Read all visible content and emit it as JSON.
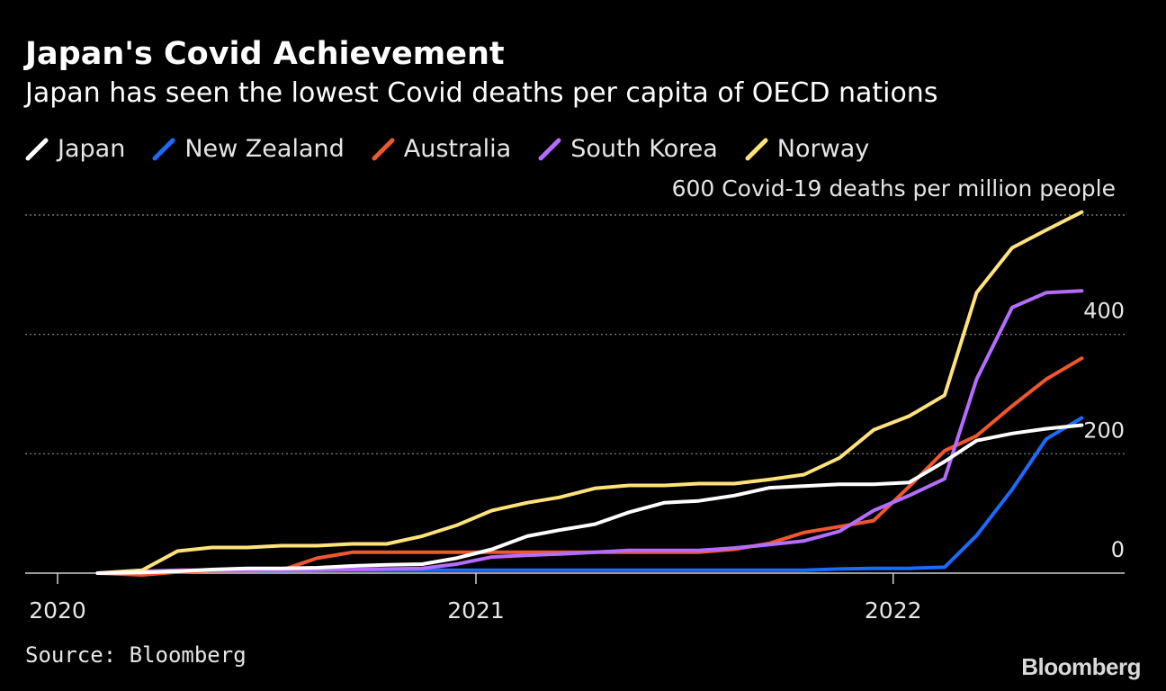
{
  "title": "Japan's Covid Achievement",
  "subtitle": "Japan has seen the lowest Covid deaths per capita of OECD nations",
  "source": "Source: Bloomberg",
  "brand": "Bloomberg",
  "colors": {
    "Japan": "#ffffff",
    "New Zealand": "#1a6bff",
    "Australia": "#f0572f",
    "South Korea": "#b56cff",
    "Norway": "#ffe37a"
  },
  "chart_data": {
    "type": "line",
    "y_axis_title": "600 Covid-19 deaths per million people",
    "ylim": [
      0,
      600
    ],
    "y_ticks": [
      {
        "value": 600,
        "label": ""
      },
      {
        "value": 400,
        "label": "400"
      },
      {
        "value": 200,
        "label": "200"
      },
      {
        "value": 0,
        "label": "0"
      }
    ],
    "x_range": [
      "2020-01-01",
      "2022-07-15"
    ],
    "x_ticks": [
      {
        "date": "2020-01-01",
        "label": "2020"
      },
      {
        "date": "2021-01-01",
        "label": "2021"
      },
      {
        "date": "2022-01-01",
        "label": "2022"
      }
    ],
    "grid": true,
    "legend_position": "top-left",
    "x": [
      "2020-02-05",
      "2020-03-15",
      "2020-04-15",
      "2020-05-15",
      "2020-06-15",
      "2020-07-15",
      "2020-08-15",
      "2020-09-15",
      "2020-10-15",
      "2020-11-15",
      "2020-12-15",
      "2021-01-15",
      "2021-02-15",
      "2021-03-15",
      "2021-04-15",
      "2021-05-15",
      "2021-06-15",
      "2021-07-15",
      "2021-08-15",
      "2021-09-15",
      "2021-10-15",
      "2021-11-15",
      "2021-12-15",
      "2022-01-15",
      "2022-02-15",
      "2022-03-15",
      "2022-04-15",
      "2022-05-15",
      "2022-06-15"
    ],
    "series": [
      {
        "name": "Japan",
        "values": [
          0,
          1,
          3,
          6,
          8,
          8,
          9,
          12,
          14,
          15,
          25,
          40,
          62,
          72,
          82,
          102,
          118,
          121,
          130,
          143,
          146,
          149,
          149,
          152,
          187,
          222,
          234,
          242,
          248
        ]
      },
      {
        "name": "New Zealand",
        "values": [
          0,
          1,
          4,
          4,
          4,
          4,
          5,
          5,
          5,
          5,
          5,
          5,
          5,
          5,
          5,
          5,
          5,
          5,
          5,
          5,
          5,
          7,
          8,
          8,
          10,
          63,
          140,
          225,
          260
        ]
      },
      {
        "name": "Australia",
        "values": [
          0,
          -3,
          2,
          4,
          4,
          5,
          25,
          35,
          35,
          35,
          35,
          35,
          35,
          35,
          35,
          35,
          35,
          35,
          40,
          50,
          68,
          78,
          88,
          145,
          205,
          230,
          280,
          325,
          360
        ]
      },
      {
        "name": "South Korea",
        "values": [
          0,
          3,
          5,
          5,
          5,
          5,
          5,
          6,
          7,
          8,
          15,
          27,
          30,
          32,
          35,
          38,
          38,
          38,
          42,
          48,
          54,
          70,
          105,
          130,
          158,
          325,
          445,
          470,
          473
        ]
      },
      {
        "name": "Norway",
        "values": [
          0,
          5,
          37,
          43,
          43,
          46,
          46,
          49,
          49,
          62,
          80,
          105,
          118,
          127,
          142,
          147,
          147,
          150,
          150,
          157,
          165,
          193,
          240,
          263,
          298,
          470,
          545,
          575,
          605
        ]
      }
    ]
  }
}
